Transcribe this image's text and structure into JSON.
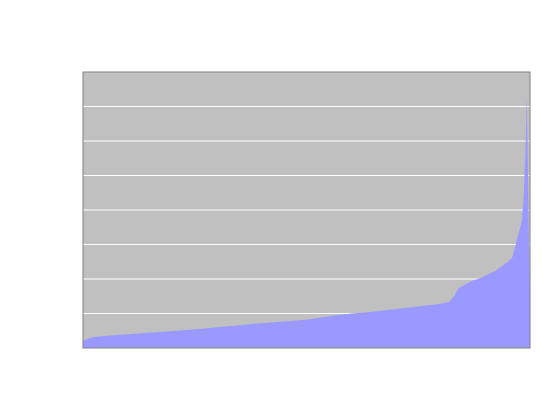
{
  "colors": {
    "background": "#ffffff",
    "plot_background": "#c0c0c0",
    "gridline": "#ffffff",
    "area_fill": "#9999ff",
    "axis_line": "#808080"
  },
  "chart_data": {
    "type": "area",
    "title": "",
    "xlabel": "",
    "ylabel": "",
    "grid": true,
    "legend": "none",
    "xlim": [
      0,
      100
    ],
    "ylim": [
      0,
      8
    ],
    "y_gridlines": [
      1,
      2,
      3,
      4,
      5,
      6,
      7
    ],
    "series": [
      {
        "values": [
          [
            0,
            0.2
          ],
          [
            1,
            0.27
          ],
          [
            2.5,
            0.32
          ],
          [
            5,
            0.35
          ],
          [
            8,
            0.38
          ],
          [
            11,
            0.41
          ],
          [
            14,
            0.44
          ],
          [
            18,
            0.47
          ],
          [
            22,
            0.51
          ],
          [
            26,
            0.55
          ],
          [
            30,
            0.6
          ],
          [
            34,
            0.65
          ],
          [
            38,
            0.7
          ],
          [
            42,
            0.74
          ],
          [
            46,
            0.78
          ],
          [
            50,
            0.82
          ],
          [
            53,
            0.88
          ],
          [
            56,
            0.94
          ],
          [
            60,
            1.0
          ],
          [
            64,
            1.04
          ],
          [
            68,
            1.1
          ],
          [
            72,
            1.16
          ],
          [
            76,
            1.22
          ],
          [
            80,
            1.28
          ],
          [
            82,
            1.34
          ],
          [
            83,
            1.5
          ],
          [
            84,
            1.73
          ],
          [
            85,
            1.8
          ],
          [
            87,
            1.95
          ],
          [
            89,
            2.03
          ],
          [
            90,
            2.1
          ],
          [
            91,
            2.16
          ],
          [
            92,
            2.22
          ],
          [
            93,
            2.3
          ],
          [
            94,
            2.4
          ],
          [
            95,
            2.49
          ],
          [
            96,
            2.62
          ],
          [
            96.8,
            3.0
          ],
          [
            97.5,
            3.35
          ],
          [
            98.2,
            3.7
          ],
          [
            98.6,
            4.4
          ],
          [
            99.0,
            5.8
          ],
          [
            99.3,
            7.3
          ],
          [
            99.6,
            4.5
          ],
          [
            100,
            0.85
          ]
        ]
      }
    ]
  }
}
